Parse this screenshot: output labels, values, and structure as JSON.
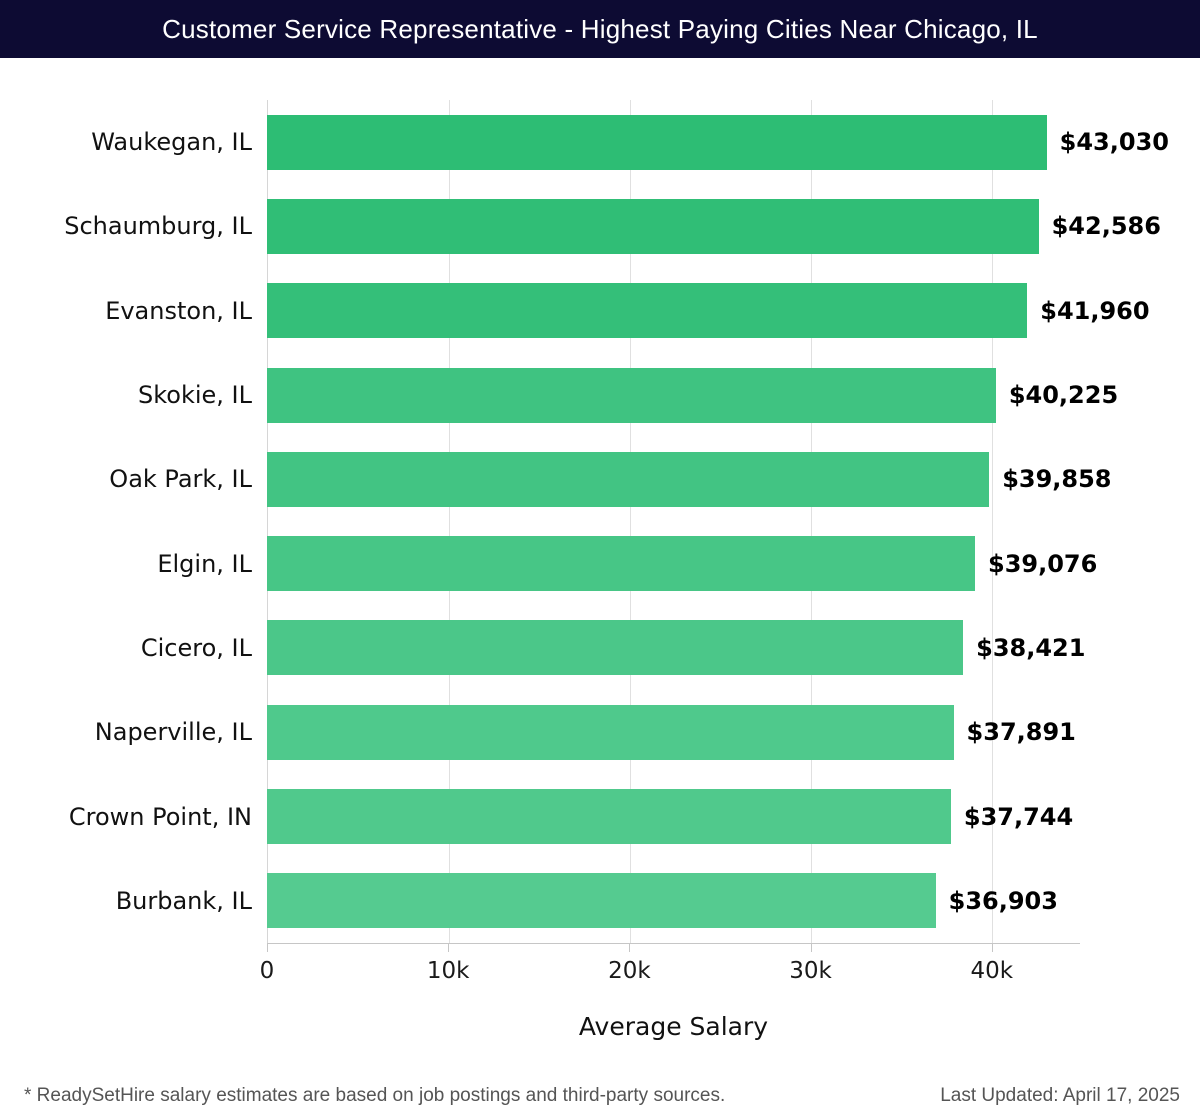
{
  "header": {
    "title": "Customer Service Representative - Highest Paying Cities Near Chicago, IL",
    "bg_color": "#0d0b33"
  },
  "chart_data": {
    "type": "bar",
    "orientation": "horizontal",
    "title": "Customer Service Representative - Highest Paying Cities Near Chicago, IL",
    "categories": [
      "Waukegan, IL",
      "Schaumburg, IL",
      "Evanston, IL",
      "Skokie, IL",
      "Oak Park, IL",
      "Elgin, IL",
      "Cicero, IL",
      "Naperville, IL",
      "Crown Point, IN",
      "Burbank, IL"
    ],
    "values": [
      43030,
      42586,
      41960,
      40225,
      39858,
      39076,
      38421,
      37891,
      37744,
      36903
    ],
    "value_labels": [
      "$43,030",
      "$42,586",
      "$41,960",
      "$40,225",
      "$39,858",
      "$39,076",
      "$38,421",
      "$37,891",
      "$37,744",
      "$36,903"
    ],
    "bar_colors": [
      "#2dbd74",
      "#30be76",
      "#34bf79",
      "#3fc381",
      "#42c483",
      "#47c686",
      "#4bc789",
      "#4fc98c",
      "#50c98c",
      "#55cb90"
    ],
    "xlabel": "Average Salary",
    "ylabel": "",
    "xlim": [
      0,
      44870
    ],
    "x_ticks": [
      {
        "value": 0,
        "label": "0"
      },
      {
        "value": 10000,
        "label": "10k"
      },
      {
        "value": 20000,
        "label": "20k"
      },
      {
        "value": 30000,
        "label": "30k"
      },
      {
        "value": 40000,
        "label": "40k"
      }
    ],
    "grid": "vertical",
    "legend": "none"
  },
  "footer": {
    "note": "* ReadySetHire salary estimates are based on job postings and third-party sources.",
    "last_updated": "Last Updated: April 17, 2025"
  }
}
